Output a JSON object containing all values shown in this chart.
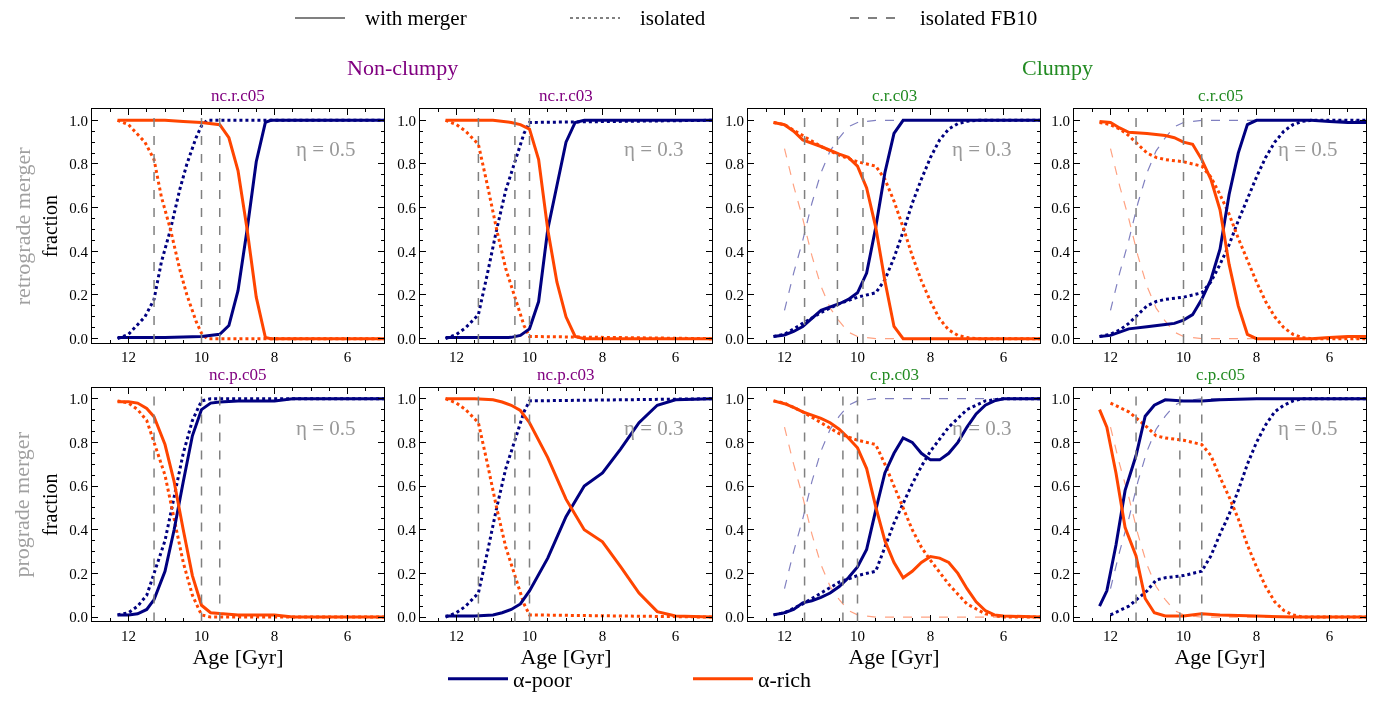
{
  "chart_data": [
    {
      "type": "line",
      "title": "nc.r.c05",
      "ylabel": "fraction",
      "xlim": [
        13,
        5
      ],
      "ylim": [
        -0.02,
        1.05
      ],
      "xticks": [
        12,
        10,
        8,
        6
      ],
      "yticks": [
        {
          "value": 0,
          "label": "0.0"
        },
        {
          "value": 0.2,
          "label": "0.2"
        },
        {
          "value": 0.4,
          "label": "0.4"
        },
        {
          "value": 0.6,
          "label": "0.6"
        },
        {
          "value": 0.8,
          "label": "0.8"
        },
        {
          "value": 1,
          "label": "1.0"
        }
      ],
      "legend": "bottom",
      "annotations": [
        "η = 0.5",
        "with merger",
        "isolated",
        "isolated FB10",
        "Non-clumpy",
        "retrograde merger"
      ],
      "ref_lines": [
        {
          "axis": "x",
          "value": 11.3,
          "color": "#808080",
          "line_style": "dashed"
        },
        {
          "axis": "x",
          "value": 10.0,
          "color": "#808080",
          "line_style": "dashed"
        },
        {
          "axis": "x",
          "value": 9.5,
          "color": "#808080",
          "line_style": "dashed"
        }
      ],
      "series": [
        {
          "color": "#000080",
          "line_style": "dotted",
          "x": [
            12.3,
            12.0,
            11.55,
            11.3,
            11.1,
            10.85,
            10.6,
            10.4,
            10.15,
            10.0,
            9.85,
            5.0
          ],
          "values": [
            0.0,
            0.02,
            0.1,
            0.18,
            0.35,
            0.5,
            0.68,
            0.8,
            0.92,
            0.975,
            1.0,
            1.0
          ]
        },
        {
          "color": "#ff4500",
          "line_style": "dotted",
          "x": [
            12.3,
            12.0,
            11.55,
            11.3,
            11.1,
            10.85,
            10.6,
            10.4,
            10.15,
            10.0,
            9.85,
            5.0
          ],
          "values": [
            1.0,
            0.98,
            0.9,
            0.82,
            0.65,
            0.5,
            0.32,
            0.2,
            0.08,
            0.025,
            0.0,
            0.0
          ]
        },
        {
          "name": "α-poor",
          "color": "#000080",
          "line_style": "solid",
          "x": [
            12.3,
            11.0,
            10.5,
            10.0,
            9.5,
            9.25,
            9.0,
            8.75,
            8.5,
            8.25,
            8.1,
            5.0
          ],
          "values": [
            0.005,
            0.005,
            0.008,
            0.01,
            0.02,
            0.06,
            0.22,
            0.5,
            0.81,
            0.99,
            1.0,
            1.0
          ]
        },
        {
          "name": "α-rich",
          "color": "#ff4500",
          "line_style": "solid",
          "x": [
            12.3,
            11.0,
            10.5,
            10.0,
            9.5,
            9.25,
            9.0,
            8.75,
            8.5,
            8.25,
            8.1,
            5.0
          ],
          "values": [
            1.0,
            1.0,
            0.995,
            0.99,
            0.98,
            0.92,
            0.77,
            0.5,
            0.19,
            0.005,
            0.0,
            0.0
          ]
        }
      ]
    },
    {
      "type": "line",
      "title": "nc.r.c03",
      "xlim": [
        13,
        5
      ],
      "ylim": [
        -0.02,
        1.05
      ],
      "xticks": [
        12,
        10,
        8,
        6
      ],
      "yticks": [
        {
          "value": 0,
          "label": "0.0"
        },
        {
          "value": 0.2,
          "label": "0.2"
        },
        {
          "value": 0.4,
          "label": "0.4"
        },
        {
          "value": 0.6,
          "label": "0.6"
        },
        {
          "value": 0.8,
          "label": "0.8"
        },
        {
          "value": 1,
          "label": "1.0"
        }
      ],
      "annotations": [
        "η = 0.3"
      ],
      "ref_lines": [
        {
          "axis": "x",
          "value": 11.4,
          "color": "#808080",
          "line_style": "dashed"
        },
        {
          "axis": "x",
          "value": 10.4,
          "color": "#808080",
          "line_style": "dashed"
        },
        {
          "axis": "x",
          "value": 10.0,
          "color": "#808080",
          "line_style": "dashed"
        }
      ],
      "series": [
        {
          "color": "#000080",
          "line_style": "dotted",
          "x": [
            12.3,
            12.0,
            11.75,
            11.4,
            11.15,
            10.9,
            10.65,
            10.4,
            10.15,
            10.0,
            5.0
          ],
          "values": [
            0.0,
            0.02,
            0.05,
            0.11,
            0.3,
            0.5,
            0.68,
            0.81,
            0.94,
            0.99,
            1.0
          ]
        },
        {
          "color": "#ff4500",
          "line_style": "dotted",
          "x": [
            12.3,
            12.0,
            11.75,
            11.4,
            11.15,
            10.9,
            10.65,
            10.4,
            10.15,
            10.0,
            5.0
          ],
          "values": [
            1.0,
            0.98,
            0.95,
            0.89,
            0.7,
            0.5,
            0.32,
            0.19,
            0.06,
            0.01,
            0.0
          ]
        },
        {
          "color": "#000080",
          "line_style": "solid",
          "x": [
            12.3,
            11.0,
            10.5,
            10.25,
            10.0,
            9.75,
            9.5,
            9.25,
            9.0,
            8.75,
            8.5,
            5.0
          ],
          "values": [
            0.005,
            0.005,
            0.006,
            0.015,
            0.045,
            0.17,
            0.5,
            0.7,
            0.9,
            0.99,
            1.0,
            1.0
          ]
        },
        {
          "color": "#ff4500",
          "line_style": "solid",
          "x": [
            12.3,
            11.0,
            10.5,
            10.25,
            10.0,
            9.75,
            9.5,
            9.25,
            9.0,
            8.75,
            8.5,
            5.0
          ],
          "values": [
            1.0,
            1.0,
            0.99,
            0.98,
            0.96,
            0.82,
            0.5,
            0.26,
            0.1,
            0.01,
            0.0,
            0.0
          ]
        }
      ]
    },
    {
      "type": "line",
      "title": "c.r.c03",
      "xlim": [
        13,
        5
      ],
      "ylim": [
        -0.02,
        1.05
      ],
      "xticks": [
        12,
        10,
        8,
        6
      ],
      "yticks": [
        {
          "value": 0,
          "label": "0.0"
        },
        {
          "value": 0.2,
          "label": "0.2"
        },
        {
          "value": 0.4,
          "label": "0.4"
        },
        {
          "value": 0.6,
          "label": "0.6"
        },
        {
          "value": 0.8,
          "label": "0.8"
        },
        {
          "value": 1,
          "label": "1.0"
        }
      ],
      "annotations": [
        "η = 0.3",
        "Clumpy"
      ],
      "ref_lines": [
        {
          "axis": "x",
          "value": 11.45,
          "color": "#808080",
          "line_style": "dashed"
        },
        {
          "axis": "x",
          "value": 10.55,
          "color": "#808080",
          "line_style": "dashed"
        },
        {
          "axis": "x",
          "value": 9.85,
          "color": "#808080",
          "line_style": "dashed"
        }
      ],
      "series": [
        {
          "color": "#8080c0",
          "line_style": "dashed",
          "x": [
            12.0,
            11.75,
            11.5,
            11.25,
            11.0,
            10.75,
            10.5,
            10.25,
            10.0,
            9.5,
            5.0
          ],
          "values": [
            0.13,
            0.3,
            0.45,
            0.62,
            0.76,
            0.86,
            0.92,
            0.97,
            0.99,
            1.0,
            1.0
          ]
        },
        {
          "color": "#ffa282",
          "line_style": "dashed",
          "x": [
            12.0,
            11.75,
            11.5,
            11.25,
            11.0,
            10.75,
            10.5,
            10.25,
            10.0,
            9.5,
            5.0
          ],
          "values": [
            0.87,
            0.7,
            0.55,
            0.38,
            0.24,
            0.14,
            0.08,
            0.03,
            0.01,
            0.0,
            0.0
          ]
        },
        {
          "color": "#000080",
          "line_style": "dotted",
          "x": [
            12.3,
            12.0,
            11.5,
            11.0,
            10.5,
            10.0,
            9.5,
            9.25,
            9.0,
            8.75,
            8.5,
            8.25,
            8.0,
            7.75,
            7.5,
            7.25,
            7.0,
            6.75,
            5.0
          ],
          "values": [
            0.01,
            0.02,
            0.07,
            0.12,
            0.16,
            0.19,
            0.21,
            0.27,
            0.37,
            0.49,
            0.62,
            0.73,
            0.83,
            0.91,
            0.96,
            0.985,
            0.995,
            1.0,
            1.0
          ]
        },
        {
          "color": "#ff4500",
          "line_style": "dotted",
          "x": [
            12.3,
            12.0,
            11.5,
            11.0,
            10.5,
            10.0,
            9.5,
            9.25,
            9.0,
            8.75,
            8.5,
            8.25,
            8.0,
            7.75,
            7.5,
            7.25,
            7.0,
            6.75,
            5.0
          ],
          "values": [
            0.99,
            0.98,
            0.93,
            0.88,
            0.84,
            0.81,
            0.79,
            0.73,
            0.63,
            0.51,
            0.38,
            0.265,
            0.17,
            0.09,
            0.04,
            0.015,
            0.005,
            0.0,
            0.0
          ]
        },
        {
          "color": "#000080",
          "line_style": "solid",
          "x": [
            12.3,
            12.0,
            11.75,
            11.5,
            11.0,
            10.5,
            10.25,
            10.0,
            9.75,
            9.5,
            9.25,
            9.0,
            8.75,
            5.0
          ],
          "values": [
            0.01,
            0.017,
            0.033,
            0.056,
            0.13,
            0.16,
            0.18,
            0.21,
            0.3,
            0.51,
            0.76,
            0.94,
            1.0,
            1.0
          ]
        },
        {
          "color": "#ff4500",
          "line_style": "solid",
          "x": [
            12.3,
            12.0,
            11.75,
            11.5,
            11.0,
            10.5,
            10.25,
            10.0,
            9.75,
            9.5,
            9.25,
            9.0,
            8.75,
            5.0
          ],
          "values": [
            0.99,
            0.98,
            0.95,
            0.91,
            0.88,
            0.845,
            0.83,
            0.79,
            0.69,
            0.51,
            0.265,
            0.056,
            0.0,
            0.0
          ]
        }
      ]
    },
    {
      "type": "line",
      "title": "c.r.c05",
      "xlim": [
        13,
        5
      ],
      "ylim": [
        -0.02,
        1.05
      ],
      "xticks": [
        12,
        10,
        8,
        6
      ],
      "yticks": [
        {
          "value": 0,
          "label": "0.0"
        },
        {
          "value": 0.2,
          "label": "0.2"
        },
        {
          "value": 0.4,
          "label": "0.4"
        },
        {
          "value": 0.6,
          "label": "0.6"
        },
        {
          "value": 0.8,
          "label": "0.8"
        },
        {
          "value": 1,
          "label": "1.0"
        }
      ],
      "annotations": [
        "η = 0.5"
      ],
      "ref_lines": [
        {
          "axis": "x",
          "value": 11.3,
          "color": "#808080",
          "line_style": "dashed"
        },
        {
          "axis": "x",
          "value": 10.0,
          "color": "#808080",
          "line_style": "dashed"
        },
        {
          "axis": "x",
          "value": 9.5,
          "color": "#808080",
          "line_style": "dashed"
        }
      ],
      "series": [
        {
          "color": "#8080c0",
          "line_style": "dashed",
          "x": [
            12.0,
            11.75,
            11.5,
            11.25,
            11.0,
            10.75,
            10.5,
            10.25,
            10.0,
            9.5,
            5.0
          ],
          "values": [
            0.13,
            0.3,
            0.45,
            0.62,
            0.76,
            0.86,
            0.92,
            0.97,
            0.99,
            1.0,
            1.0
          ]
        },
        {
          "color": "#ffa282",
          "line_style": "dashed",
          "x": [
            12.0,
            11.75,
            11.5,
            11.25,
            11.0,
            10.75,
            10.5,
            10.25,
            10.0,
            9.5,
            5.0
          ],
          "values": [
            0.87,
            0.7,
            0.55,
            0.38,
            0.24,
            0.14,
            0.08,
            0.03,
            0.01,
            0.0,
            0.0
          ]
        },
        {
          "color": "#000080",
          "line_style": "dotted",
          "x": [
            12.3,
            12.0,
            11.75,
            11.5,
            11.25,
            11.0,
            10.75,
            10.5,
            10.0,
            9.5,
            9.25,
            9.0,
            8.75,
            8.5,
            8.25,
            8.0,
            7.75,
            7.5,
            7.25,
            7.0,
            6.75,
            6.5,
            5.0
          ],
          "values": [
            0.01,
            0.02,
            0.04,
            0.07,
            0.11,
            0.15,
            0.17,
            0.18,
            0.19,
            0.21,
            0.26,
            0.34,
            0.43,
            0.54,
            0.64,
            0.74,
            0.83,
            0.9,
            0.95,
            0.98,
            0.995,
            1.0,
            1.0
          ]
        },
        {
          "color": "#ff4500",
          "line_style": "dotted",
          "x": [
            12.3,
            12.0,
            11.75,
            11.5,
            11.25,
            11.0,
            10.75,
            10.5,
            10.0,
            9.5,
            9.25,
            9.0,
            8.75,
            8.5,
            8.25,
            8.0,
            7.75,
            7.5,
            7.25,
            7.0,
            6.75,
            6.5,
            5.0
          ],
          "values": [
            0.99,
            0.98,
            0.96,
            0.93,
            0.89,
            0.85,
            0.83,
            0.82,
            0.81,
            0.79,
            0.74,
            0.66,
            0.57,
            0.46,
            0.36,
            0.26,
            0.17,
            0.1,
            0.05,
            0.02,
            0.005,
            0.0,
            0.0
          ]
        },
        {
          "color": "#000080",
          "line_style": "solid",
          "x": [
            12.3,
            12.0,
            11.75,
            11.5,
            11.0,
            10.5,
            10.25,
            10.0,
            9.75,
            9.5,
            9.25,
            9.0,
            8.75,
            8.5,
            8.25,
            8.0,
            6.5,
            6.0,
            5.5,
            5.0
          ],
          "values": [
            0.01,
            0.015,
            0.03,
            0.045,
            0.055,
            0.065,
            0.07,
            0.085,
            0.11,
            0.18,
            0.27,
            0.41,
            0.66,
            0.85,
            0.98,
            1.0,
            1.0,
            0.995,
            0.99,
            0.99
          ]
        },
        {
          "color": "#ff4500",
          "line_style": "solid",
          "x": [
            12.3,
            12.0,
            11.75,
            11.5,
            11.0,
            10.5,
            10.25,
            10.0,
            9.75,
            9.5,
            9.25,
            9.0,
            8.75,
            8.5,
            8.25,
            8.0,
            6.5,
            6.0,
            5.5,
            5.0
          ],
          "values": [
            0.995,
            0.99,
            0.965,
            0.945,
            0.94,
            0.93,
            0.92,
            0.9,
            0.89,
            0.82,
            0.73,
            0.59,
            0.34,
            0.15,
            0.02,
            0.0,
            0.0,
            0.005,
            0.01,
            0.01
          ]
        }
      ]
    },
    {
      "type": "line",
      "title": "nc.p.c05",
      "xlabel": "Age [Gyr]",
      "ylabel": "fraction",
      "xlim": [
        13,
        5
      ],
      "ylim": [
        -0.02,
        1.05
      ],
      "xticks": [
        12,
        10,
        8,
        6
      ],
      "yticks": [
        {
          "value": 0,
          "label": "0.0"
        },
        {
          "value": 0.2,
          "label": "0.2"
        },
        {
          "value": 0.4,
          "label": "0.4"
        },
        {
          "value": 0.6,
          "label": "0.6"
        },
        {
          "value": 0.8,
          "label": "0.8"
        },
        {
          "value": 1,
          "label": "1.0"
        }
      ],
      "annotations": [
        "η = 0.5",
        "prograde merger"
      ],
      "ref_lines": [
        {
          "axis": "x",
          "value": 11.3,
          "color": "#808080",
          "line_style": "dashed"
        },
        {
          "axis": "x",
          "value": 10.0,
          "color": "#808080",
          "line_style": "dashed"
        },
        {
          "axis": "x",
          "value": 9.5,
          "color": "#808080",
          "line_style": "dashed"
        }
      ],
      "series": [
        {
          "color": "#000080",
          "line_style": "dotted",
          "x": [
            12.3,
            12.0,
            11.75,
            11.5,
            11.3,
            11.0,
            10.75,
            10.5,
            10.25,
            10.0,
            9.75,
            5.0
          ],
          "values": [
            0.01,
            0.02,
            0.05,
            0.1,
            0.2,
            0.35,
            0.55,
            0.75,
            0.9,
            0.99,
            1.0,
            1.0
          ]
        },
        {
          "color": "#ff4500",
          "line_style": "dotted",
          "x": [
            12.3,
            12.0,
            11.75,
            11.5,
            11.3,
            11.0,
            10.75,
            10.5,
            10.25,
            10.0,
            9.75,
            5.0
          ],
          "values": [
            0.99,
            0.98,
            0.95,
            0.9,
            0.8,
            0.65,
            0.45,
            0.25,
            0.1,
            0.01,
            0.0,
            0.0
          ]
        },
        {
          "color": "#000080",
          "line_style": "solid",
          "x": [
            12.3,
            12.0,
            11.75,
            11.5,
            11.3,
            11.0,
            10.75,
            10.5,
            10.25,
            10.0,
            9.75,
            9.5,
            9.0,
            8.0,
            7.5,
            5.0
          ],
          "values": [
            0.01,
            0.01,
            0.015,
            0.035,
            0.08,
            0.21,
            0.4,
            0.62,
            0.83,
            0.95,
            0.98,
            0.985,
            0.99,
            0.99,
            1.0,
            1.0
          ]
        },
        {
          "color": "#ff4500",
          "line_style": "solid",
          "x": [
            12.3,
            12.0,
            11.75,
            11.5,
            11.3,
            11.0,
            10.75,
            10.5,
            10.25,
            10.0,
            9.75,
            9.5,
            9.0,
            8.0,
            7.5,
            5.0
          ],
          "values": [
            0.986,
            0.986,
            0.98,
            0.955,
            0.917,
            0.79,
            0.62,
            0.4,
            0.19,
            0.054,
            0.02,
            0.016,
            0.01,
            0.01,
            0.0,
            0.0
          ]
        }
      ]
    },
    {
      "type": "line",
      "title": "nc.p.c03",
      "xlabel": "Age [Gyr]",
      "xlim": [
        13,
        5
      ],
      "ylim": [
        -0.02,
        1.05
      ],
      "xticks": [
        12,
        10,
        8,
        6
      ],
      "yticks": [
        {
          "value": 0,
          "label": "0.0"
        },
        {
          "value": 0.2,
          "label": "0.2"
        },
        {
          "value": 0.4,
          "label": "0.4"
        },
        {
          "value": 0.6,
          "label": "0.6"
        },
        {
          "value": 0.8,
          "label": "0.8"
        },
        {
          "value": 1,
          "label": "1.0"
        }
      ],
      "annotations": [
        "η = 0.3"
      ],
      "ref_lines": [
        {
          "axis": "x",
          "value": 11.4,
          "color": "#808080",
          "line_style": "dashed"
        },
        {
          "axis": "x",
          "value": 10.4,
          "color": "#808080",
          "line_style": "dashed"
        },
        {
          "axis": "x",
          "value": 10.0,
          "color": "#808080",
          "line_style": "dashed"
        }
      ],
      "series": [
        {
          "color": "#000080",
          "line_style": "dotted",
          "x": [
            12.3,
            12.0,
            11.75,
            11.4,
            11.15,
            10.9,
            10.65,
            10.4,
            10.15,
            10.0,
            5.0
          ],
          "values": [
            0.0,
            0.02,
            0.05,
            0.11,
            0.3,
            0.5,
            0.68,
            0.81,
            0.94,
            0.99,
            1.0
          ]
        },
        {
          "color": "#ff4500",
          "line_style": "dotted",
          "x": [
            12.3,
            12.0,
            11.75,
            11.4,
            11.15,
            10.9,
            10.65,
            10.4,
            10.15,
            10.0,
            5.0
          ],
          "values": [
            1.0,
            0.98,
            0.95,
            0.89,
            0.7,
            0.5,
            0.32,
            0.19,
            0.06,
            0.01,
            0.0
          ]
        },
        {
          "color": "#000080",
          "line_style": "solid",
          "x": [
            12.3,
            11.5,
            11.0,
            10.75,
            10.5,
            10.25,
            10.0,
            9.5,
            9.0,
            8.5,
            8.0,
            7.5,
            7.0,
            6.5,
            6.0,
            5.0
          ],
          "values": [
            0.005,
            0.005,
            0.01,
            0.02,
            0.035,
            0.06,
            0.12,
            0.27,
            0.46,
            0.6,
            0.66,
            0.77,
            0.89,
            0.97,
            0.995,
            1.0
          ]
        },
        {
          "color": "#ff4500",
          "line_style": "solid",
          "x": [
            12.3,
            11.5,
            11.0,
            10.75,
            10.5,
            10.25,
            10.0,
            9.5,
            9.0,
            8.5,
            8.0,
            7.5,
            7.0,
            6.5,
            6.0,
            5.0
          ],
          "values": [
            1.0,
            1.0,
            0.995,
            0.985,
            0.97,
            0.946,
            0.89,
            0.73,
            0.54,
            0.4,
            0.345,
            0.23,
            0.11,
            0.025,
            0.005,
            0.0
          ]
        }
      ]
    },
    {
      "type": "line",
      "title": "c.p.c03",
      "xlabel": "Age [Gyr]",
      "xlim": [
        13,
        5
      ],
      "ylim": [
        -0.02,
        1.05
      ],
      "xticks": [
        12,
        10,
        8,
        6
      ],
      "yticks": [
        {
          "value": 0,
          "label": "0.0"
        },
        {
          "value": 0.2,
          "label": "0.2"
        },
        {
          "value": 0.4,
          "label": "0.4"
        },
        {
          "value": 0.6,
          "label": "0.6"
        },
        {
          "value": 0.8,
          "label": "0.8"
        },
        {
          "value": 1,
          "label": "1.0"
        }
      ],
      "annotations": [
        "η = 0.3"
      ],
      "ref_lines": [
        {
          "axis": "x",
          "value": 11.45,
          "color": "#808080",
          "line_style": "dashed"
        },
        {
          "axis": "x",
          "value": 10.4,
          "color": "#808080",
          "line_style": "dashed"
        },
        {
          "axis": "x",
          "value": 10.0,
          "color": "#808080",
          "line_style": "dashed"
        }
      ],
      "series": [
        {
          "color": "#8080c0",
          "line_style": "dashed",
          "x": [
            12.0,
            11.75,
            11.5,
            11.25,
            11.0,
            10.75,
            10.5,
            10.25,
            10.0,
            9.5,
            5.0
          ],
          "values": [
            0.13,
            0.3,
            0.45,
            0.62,
            0.76,
            0.86,
            0.92,
            0.97,
            0.99,
            1.0,
            1.0
          ]
        },
        {
          "color": "#ffa282",
          "line_style": "dashed",
          "x": [
            12.0,
            11.75,
            11.5,
            11.25,
            11.0,
            10.75,
            10.5,
            10.25,
            10.0,
            9.5,
            5.0
          ],
          "values": [
            0.87,
            0.7,
            0.55,
            0.38,
            0.24,
            0.14,
            0.08,
            0.03,
            0.01,
            0.0,
            0.0
          ]
        },
        {
          "color": "#000080",
          "line_style": "dotted",
          "x": [
            12.3,
            12.0,
            11.5,
            11.0,
            10.5,
            10.0,
            9.5,
            9.25,
            9.0,
            8.75,
            8.5,
            8.25,
            8.0,
            7.5,
            7.0,
            6.5,
            6.0,
            5.0
          ],
          "values": [
            0.01,
            0.02,
            0.06,
            0.11,
            0.16,
            0.19,
            0.21,
            0.32,
            0.43,
            0.52,
            0.61,
            0.69,
            0.76,
            0.87,
            0.95,
            0.99,
            1.0,
            1.0
          ]
        },
        {
          "color": "#ff4500",
          "line_style": "dotted",
          "x": [
            12.3,
            12.0,
            11.5,
            11.0,
            10.5,
            10.0,
            9.5,
            9.25,
            9.0,
            8.75,
            8.5,
            8.25,
            8.0,
            7.5,
            7.0,
            6.5,
            6.0,
            5.0
          ],
          "values": [
            0.99,
            0.98,
            0.94,
            0.89,
            0.84,
            0.81,
            0.79,
            0.7,
            0.6,
            0.5,
            0.4,
            0.32,
            0.26,
            0.15,
            0.06,
            0.015,
            0.0,
            0.0
          ]
        },
        {
          "color": "#000080",
          "line_style": "solid",
          "x": [
            12.3,
            12.0,
            11.75,
            11.5,
            11.25,
            11.0,
            10.75,
            10.5,
            10.25,
            10.0,
            9.75,
            9.5,
            9.25,
            9.0,
            8.75,
            8.5,
            8.25,
            8.0,
            7.75,
            7.5,
            7.25,
            7.0,
            6.75,
            6.5,
            6.25,
            6.0,
            5.0
          ],
          "values": [
            0.01,
            0.02,
            0.035,
            0.065,
            0.075,
            0.09,
            0.11,
            0.14,
            0.18,
            0.23,
            0.31,
            0.49,
            0.66,
            0.75,
            0.82,
            0.8,
            0.75,
            0.72,
            0.72,
            0.75,
            0.8,
            0.87,
            0.93,
            0.97,
            0.99,
            1.0,
            1.0
          ]
        },
        {
          "color": "#ff4500",
          "line_style": "solid",
          "x": [
            12.3,
            12.0,
            11.75,
            11.5,
            11.25,
            11.0,
            10.75,
            10.5,
            10.25,
            10.0,
            9.75,
            9.5,
            9.25,
            9.0,
            8.75,
            8.5,
            8.25,
            8.0,
            7.75,
            7.5,
            7.25,
            7.0,
            6.75,
            6.5,
            6.25,
            6.0,
            5.0
          ],
          "values": [
            0.99,
            0.977,
            0.96,
            0.94,
            0.925,
            0.91,
            0.89,
            0.86,
            0.82,
            0.775,
            0.68,
            0.505,
            0.35,
            0.25,
            0.18,
            0.21,
            0.25,
            0.277,
            0.27,
            0.25,
            0.2,
            0.13,
            0.07,
            0.03,
            0.01,
            0.005,
            0.0
          ]
        }
      ]
    },
    {
      "type": "line",
      "title": "c.p.c05",
      "xlabel": "Age [Gyr]",
      "xlim": [
        13,
        5
      ],
      "ylim": [
        -0.02,
        1.05
      ],
      "xticks": [
        12,
        10,
        8,
        6
      ],
      "yticks": [
        {
          "value": 0,
          "label": "0.0"
        },
        {
          "value": 0.2,
          "label": "0.2"
        },
        {
          "value": 0.4,
          "label": "0.4"
        },
        {
          "value": 0.6,
          "label": "0.6"
        },
        {
          "value": 0.8,
          "label": "0.8"
        },
        {
          "value": 1,
          "label": "1.0"
        }
      ],
      "annotations": [
        "η = 0.5"
      ],
      "ref_lines": [
        {
          "axis": "x",
          "value": 11.3,
          "color": "#808080",
          "line_style": "dashed"
        },
        {
          "axis": "x",
          "value": 10.1,
          "color": "#808080",
          "line_style": "dashed"
        },
        {
          "axis": "x",
          "value": 9.5,
          "color": "#808080",
          "line_style": "dashed"
        }
      ],
      "series": [
        {
          "color": "#8080c0",
          "line_style": "dashed",
          "x": [
            12.0,
            11.75,
            11.5,
            11.25,
            11.0,
            10.75,
            10.5,
            10.25,
            10.0,
            9.5,
            5.0
          ],
          "values": [
            0.13,
            0.3,
            0.45,
            0.62,
            0.76,
            0.86,
            0.92,
            0.97,
            0.99,
            1.0,
            1.0
          ]
        },
        {
          "color": "#ffa282",
          "line_style": "dashed",
          "x": [
            12.0,
            11.75,
            11.5,
            11.25,
            11.0,
            10.75,
            10.5,
            10.25,
            10.0,
            9.5,
            5.0
          ],
          "values": [
            0.87,
            0.7,
            0.55,
            0.38,
            0.24,
            0.14,
            0.08,
            0.03,
            0.01,
            0.0,
            0.0
          ]
        },
        {
          "color": "#000080",
          "line_style": "dotted",
          "x": [
            12.0,
            11.5,
            11.0,
            10.75,
            10.5,
            10.0,
            9.5,
            9.25,
            9.0,
            8.75,
            8.5,
            8.25,
            8.0,
            7.75,
            7.5,
            7.25,
            7.0,
            6.75,
            5.0
          ],
          "values": [
            0.01,
            0.05,
            0.12,
            0.17,
            0.18,
            0.19,
            0.21,
            0.28,
            0.38,
            0.47,
            0.58,
            0.7,
            0.8,
            0.88,
            0.94,
            0.97,
            0.99,
            1.0,
            1.0
          ]
        },
        {
          "color": "#ff4500",
          "line_style": "dotted",
          "x": [
            12.0,
            11.5,
            11.0,
            10.75,
            10.5,
            10.0,
            9.5,
            9.25,
            9.0,
            8.75,
            8.5,
            8.25,
            8.0,
            7.75,
            7.5,
            7.25,
            7.0,
            6.75,
            5.0
          ],
          "values": [
            0.98,
            0.94,
            0.87,
            0.83,
            0.82,
            0.81,
            0.79,
            0.74,
            0.64,
            0.55,
            0.45,
            0.33,
            0.23,
            0.14,
            0.07,
            0.03,
            0.01,
            0.0,
            0.0
          ]
        },
        {
          "color": "#000080",
          "line_style": "solid",
          "x": [
            12.3,
            12.1,
            11.85,
            11.6,
            11.3,
            11.05,
            10.8,
            10.5,
            10.0,
            9.5,
            9.0,
            8.0,
            7.0,
            5.0
          ],
          "values": [
            0.05,
            0.12,
            0.33,
            0.58,
            0.74,
            0.92,
            0.97,
            0.995,
            0.99,
            0.99,
            0.995,
            1.0,
            1.0,
            1.0
          ]
        },
        {
          "color": "#ff4500",
          "line_style": "solid",
          "x": [
            12.3,
            12.1,
            11.85,
            11.6,
            11.3,
            11.05,
            10.8,
            10.5,
            10.0,
            9.5,
            9.0,
            8.0,
            7.0,
            5.0
          ],
          "values": [
            0.95,
            0.87,
            0.66,
            0.41,
            0.28,
            0.085,
            0.02,
            0.005,
            0.005,
            0.015,
            0.01,
            0.005,
            0.0,
            0.0
          ]
        }
      ]
    }
  ]
}
